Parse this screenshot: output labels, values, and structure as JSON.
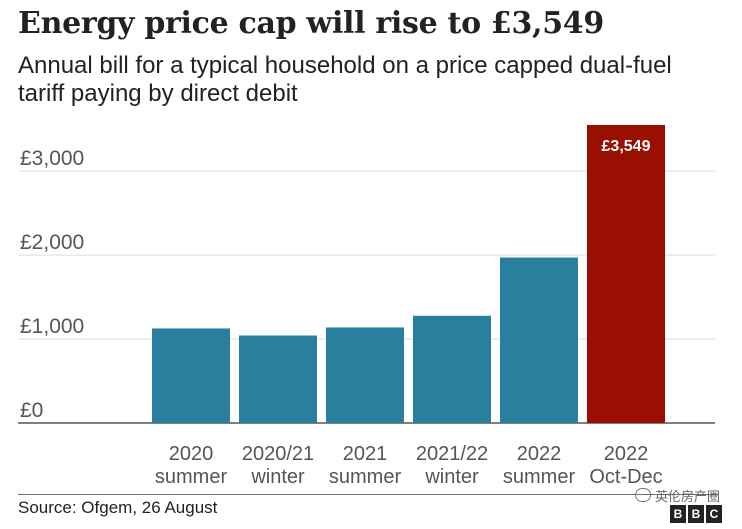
{
  "title": "Energy price cap will rise to £3,549",
  "subtitle": "Annual bill for a typical household on a price capped dual-fuel tariff paying by direct debit",
  "source": "Source: Ofgem, 26 August",
  "watermark_text": "英伦房产圈",
  "logo_letters": [
    "B",
    "B",
    "C"
  ],
  "colors": {
    "bar": "#2a7f9e",
    "highlight": "#990f02",
    "grid": "#dcdcdc",
    "axis_text": "#555555"
  },
  "chart_data": {
    "type": "bar",
    "categories": [
      [
        "2020",
        "summer"
      ],
      [
        "2020/21",
        "winter"
      ],
      [
        "2021",
        "summer"
      ],
      [
        "2021/22",
        "winter"
      ],
      [
        "2022",
        "summer"
      ],
      [
        "2022",
        "Oct-Dec"
      ]
    ],
    "values": [
      1126,
      1042,
      1138,
      1277,
      1971,
      3549
    ],
    "highlight_index": 5,
    "data_labels": [
      "",
      "",
      "",
      "",
      "",
      "£3,549"
    ],
    "yticks": [
      0,
      1000,
      2000,
      3000
    ],
    "ytick_labels": [
      "£0",
      "£1,000",
      "£2,000",
      "£3,000"
    ],
    "ylim": [
      0,
      3549
    ],
    "grid": true,
    "xlabel": "",
    "ylabel": ""
  }
}
